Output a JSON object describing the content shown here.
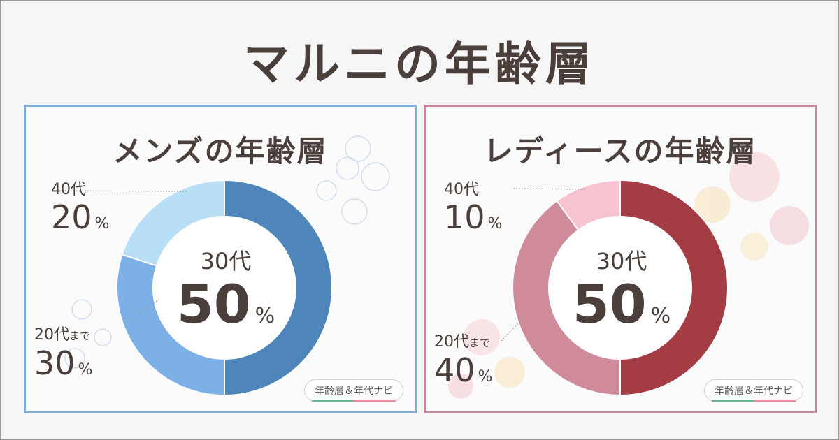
{
  "title": "マルニの年齢層",
  "badge_text": "年齢層＆年代ナビ",
  "chart_data": [
    {
      "type": "pie",
      "title": "メンズの年齢層",
      "categories": [
        "30代",
        "20代まで",
        "40代"
      ],
      "values": [
        50,
        30,
        20
      ],
      "unit": "%",
      "colors": [
        "#4e86bb",
        "#7eb0e8",
        "#b8dff6"
      ],
      "labels": {
        "center": {
          "cat": "30代",
          "value": "50",
          "unit": "%"
        },
        "upper": {
          "cat": "40代",
          "value": "20",
          "unit": "%"
        },
        "lower": {
          "cat": "20代",
          "cat_suffix": "まで",
          "value": "30",
          "unit": "%"
        }
      }
    },
    {
      "type": "pie",
      "title": "レディースの年齢層",
      "categories": [
        "30代",
        "20代まで",
        "40代"
      ],
      "values": [
        50,
        40,
        10
      ],
      "unit": "%",
      "colors": [
        "#a43c44",
        "#d08b9b",
        "#f7c3d1"
      ],
      "labels": {
        "center": {
          "cat": "30代",
          "value": "50",
          "unit": "%"
        },
        "upper": {
          "cat": "40代",
          "value": "10",
          "unit": "%"
        },
        "lower": {
          "cat": "20代",
          "cat_suffix": "まで",
          "value": "40",
          "unit": "%"
        }
      }
    }
  ]
}
